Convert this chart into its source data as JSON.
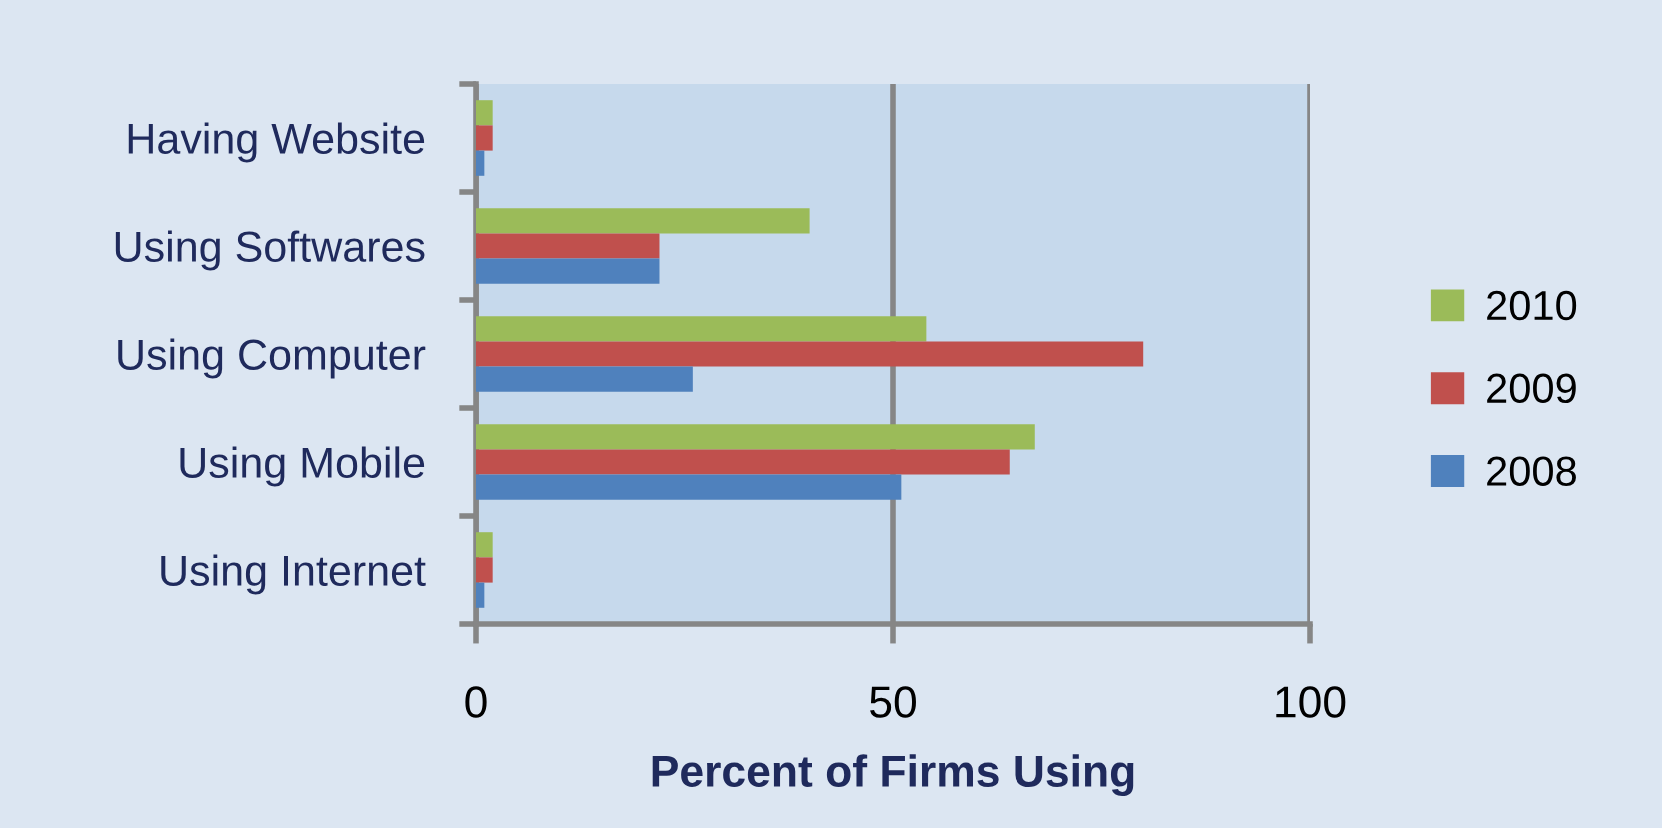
{
  "chart_data": {
    "type": "bar",
    "orientation": "horizontal",
    "categories": [
      "Having Website",
      "Using Softwares",
      "Using Computer",
      "Using Mobile",
      "Using Internet"
    ],
    "series": [
      {
        "name": "2010",
        "color": "#9bbb59",
        "values": [
          2,
          40,
          54,
          67,
          2
        ]
      },
      {
        "name": "2009",
        "color": "#c0504d",
        "values": [
          2,
          22,
          80,
          64,
          2
        ]
      },
      {
        "name": "2008",
        "color": "#4f81bd",
        "values": [
          1,
          22,
          26,
          51,
          1
        ]
      }
    ],
    "xlabel": "Percent of Firms Using",
    "xlim": [
      0,
      100
    ],
    "xticks": [
      0,
      50,
      100
    ],
    "grid": "x",
    "legend": "right"
  }
}
